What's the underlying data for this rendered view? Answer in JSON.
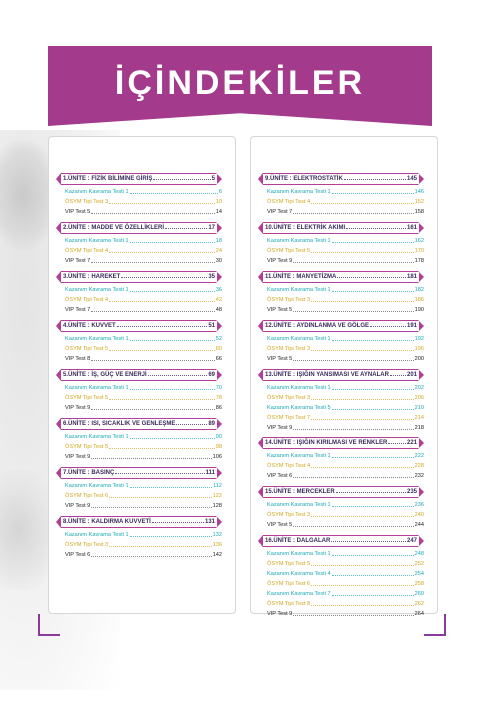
{
  "title": "İÇİNDEKİLER",
  "colors": {
    "banner": "#a33a8c",
    "kazanim": "#1aa7b8",
    "osym": "#d3a51f",
    "vip": "#222222"
  },
  "left_units": [
    {
      "title": "1.ÜNİTE : FİZİK BİLİMİNE GİRİŞ",
      "page": "5",
      "tests": [
        {
          "type": "kk",
          "name": "Kazanım Kavrama Testi 1",
          "page": "6"
        },
        {
          "type": "os",
          "name": "ÖSYM Tipi Test 3",
          "page": "10"
        },
        {
          "type": "vip",
          "name": "VIP Test 5",
          "page": "14"
        }
      ]
    },
    {
      "title": "2.ÜNİTE : MADDE VE ÖZELLİKLERİ",
      "page": "17",
      "tests": [
        {
          "type": "kk",
          "name": "Kazanım Kavrama Testi 1",
          "page": "18"
        },
        {
          "type": "os",
          "name": "ÖSYM Tipi Test 4",
          "page": "24"
        },
        {
          "type": "vip",
          "name": "VIP Test 7",
          "page": "30"
        }
      ]
    },
    {
      "title": "3.ÜNİTE : HAREKET",
      "page": "35",
      "tests": [
        {
          "type": "kk",
          "name": "Kazanım Kavrama Testi 1",
          "page": "36"
        },
        {
          "type": "os",
          "name": "ÖSYM Tipi Test 4",
          "page": "42"
        },
        {
          "type": "vip",
          "name": "VIP Test 7",
          "page": "48"
        }
      ]
    },
    {
      "title": "4.ÜNİTE : KUVVET",
      "page": "51",
      "tests": [
        {
          "type": "kk",
          "name": "Kazanım Kavrama Testi 1",
          "page": "52"
        },
        {
          "type": "os",
          "name": "ÖSYM Tipi Test 5",
          "page": "60"
        },
        {
          "type": "vip",
          "name": "VIP Test 8",
          "page": "66"
        }
      ]
    },
    {
      "title": "5.ÜNİTE : İŞ, GÜÇ VE ENERJİ",
      "page": "69",
      "tests": [
        {
          "type": "kk",
          "name": "Kazanım Kavrama Testi 1",
          "page": "70"
        },
        {
          "type": "os",
          "name": "ÖSYM Tipi Test 5",
          "page": "78"
        },
        {
          "type": "vip",
          "name": "VIP Test 9",
          "page": "86"
        }
      ]
    },
    {
      "title": "6.ÜNİTE : ISI, SICAKLIK VE GENLEŞME",
      "page": "89",
      "tests": [
        {
          "type": "kk",
          "name": "Kazanım Kavrama Testi 1",
          "page": "90"
        },
        {
          "type": "os",
          "name": "ÖSYM Tipi Test 5",
          "page": "98"
        },
        {
          "type": "vip",
          "name": "VIP Test 9",
          "page": "106"
        }
      ]
    },
    {
      "title": "7.ÜNİTE : BASINÇ",
      "page": "111",
      "tests": [
        {
          "type": "kk",
          "name": "Kazanım Kavrama Testi 1",
          "page": "112"
        },
        {
          "type": "os",
          "name": "ÖSYM Tipi Test 6",
          "page": "122"
        },
        {
          "type": "vip",
          "name": "VIP Test 9",
          "page": "128"
        }
      ]
    },
    {
      "title": "8.ÜNİTE : KALDIRMA KUVVETİ",
      "page": "131",
      "tests": [
        {
          "type": "kk",
          "name": "Kazanım Kavrama Testi 1",
          "page": "132"
        },
        {
          "type": "os",
          "name": "ÖSYM Tipi Test 3",
          "page": "136"
        },
        {
          "type": "vip",
          "name": "VIP Test 6",
          "page": "142"
        }
      ]
    }
  ],
  "right_units": [
    {
      "title": "9.ÜNİTE : ELEKTROSTATİK",
      "page": "145",
      "tests": [
        {
          "type": "kk",
          "name": "Kazanım Kavrama Testi 1",
          "page": "146"
        },
        {
          "type": "os",
          "name": "ÖSYM Tipi Test 4",
          "page": "152"
        },
        {
          "type": "vip",
          "name": "VIP Test 7",
          "page": "158"
        }
      ]
    },
    {
      "title": "10.ÜNİTE : ELEKTRİK AKIMI",
      "page": "161",
      "tests": [
        {
          "type": "kk",
          "name": "Kazanım Kavrama Testi 1",
          "page": "162"
        },
        {
          "type": "os",
          "name": "ÖSYM Tipi Test 5",
          "page": "170"
        },
        {
          "type": "vip",
          "name": "VIP Test 9",
          "page": "178"
        }
      ]
    },
    {
      "title": "11.ÜNİTE : MANYETİZMA",
      "page": "181",
      "tests": [
        {
          "type": "kk",
          "name": "Kazanım Kavrama Testi 1",
          "page": "182"
        },
        {
          "type": "os",
          "name": "ÖSYM Tipi Test 3",
          "page": "186"
        },
        {
          "type": "vip",
          "name": "VIP Test 5",
          "page": "190"
        }
      ]
    },
    {
      "title": "12.ÜNİTE : AYDINLANMA VE GÖLGE",
      "page": "191",
      "tests": [
        {
          "type": "kk",
          "name": "Kazanım Kavrama Testi 1",
          "page": "192"
        },
        {
          "type": "os",
          "name": "ÖSYM Tipi Test 3",
          "page": "196"
        },
        {
          "type": "vip",
          "name": "VIP Test 5",
          "page": "200"
        }
      ]
    },
    {
      "title": "13.ÜNİTE : IŞIĞIN YANSIMASI VE AYNALAR",
      "page": "201",
      "tests": [
        {
          "type": "kk",
          "name": "Kazanım Kavrama Testi 1",
          "page": "202"
        },
        {
          "type": "os",
          "name": "ÖSYM Tipi Test 3",
          "page": "206"
        },
        {
          "type": "kk",
          "name": "Kazanım Kavrama Testi 5",
          "page": "210"
        },
        {
          "type": "os",
          "name": "ÖSYM Tipi Test 7",
          "page": "214"
        },
        {
          "type": "vip",
          "name": "VIP Test 9",
          "page": "218"
        }
      ]
    },
    {
      "title": "14.ÜNİTE : IŞIĞIN KIRILMASI VE RENKLER",
      "page": "221",
      "tests": [
        {
          "type": "kk",
          "name": "Kazanım Kavrama Testi 1",
          "page": "222"
        },
        {
          "type": "os",
          "name": "ÖSYM Tipi Test 4",
          "page": "228"
        },
        {
          "type": "vip",
          "name": "VIP Test 6",
          "page": "232"
        }
      ]
    },
    {
      "title": "15.ÜNİTE : MERCEKLER",
      "page": "235",
      "tests": [
        {
          "type": "kk",
          "name": "Kazanım Kavrama Testi 1",
          "page": "236"
        },
        {
          "type": "os",
          "name": "ÖSYM Tipi Test 3",
          "page": "240"
        },
        {
          "type": "vip",
          "name": "VIP Test 5",
          "page": "244"
        }
      ]
    },
    {
      "title": "16.ÜNİTE : DALGALAR",
      "page": "247",
      "tests": [
        {
          "type": "kk",
          "name": "Kazanım Kavrama Testi 1",
          "page": "248"
        },
        {
          "type": "os",
          "name": "ÖSYM Tipi Test 5",
          "page": "252"
        },
        {
          "type": "kk",
          "name": "Kazanım Kavrama Testi 4",
          "page": "254"
        },
        {
          "type": "os",
          "name": "ÖSYM Tipi Test 6",
          "page": "258"
        },
        {
          "type": "kk",
          "name": "Kazanım Kavrama Testi 7",
          "page": "260"
        },
        {
          "type": "os",
          "name": "ÖSYM Tipi Test 8",
          "page": "262"
        },
        {
          "type": "vip",
          "name": "VIP Test 9",
          "page": "264"
        }
      ]
    }
  ]
}
